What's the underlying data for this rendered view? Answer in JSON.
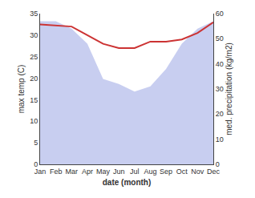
{
  "chart_data": {
    "type": "line",
    "xlabel": "date (month)",
    "ylabel": "max temp (C)",
    "y2label": "med. precipitation (kg/m2)",
    "categories": [
      "Jan",
      "Feb",
      "Mar",
      "Apr",
      "May",
      "Jun",
      "Jul",
      "Aug",
      "Sep",
      "Oct",
      "Nov",
      "Dec"
    ],
    "series": [
      {
        "type": "line",
        "color": "#cc3333",
        "values": [
          32.5,
          32.3,
          32.0,
          30.0,
          28.0,
          27.0,
          27.0,
          28.5,
          28.5,
          29.0,
          30.5,
          33.0
        ]
      },
      {
        "type": "area",
        "color": "#aab4e8",
        "axis": "y2",
        "values": [
          57,
          57,
          54,
          48,
          34,
          32,
          29,
          31,
          38,
          48,
          54,
          57
        ]
      }
    ],
    "ylim": [
      0,
      35
    ],
    "yticks": [
      0,
      5,
      10,
      15,
      20,
      25,
      30,
      35
    ],
    "y2lim": [
      0,
      60
    ],
    "y2ticks": [
      0,
      10,
      20,
      30,
      40,
      50,
      60
    ],
    "grid": false
  }
}
